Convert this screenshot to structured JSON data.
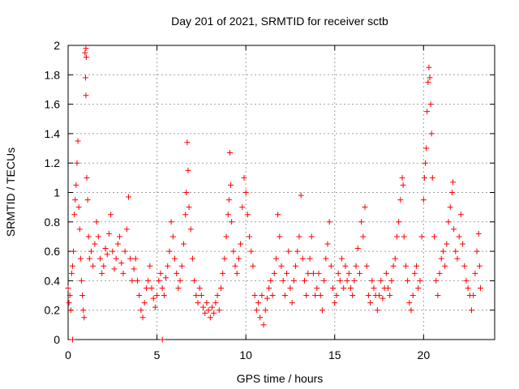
{
  "chart_data": {
    "type": "scatter",
    "title": "Day 201 of 2021, SRMTID for receiver sctb",
    "xlabel": "GPS time / hours",
    "ylabel": "SRMTID / TECUs",
    "xlim": [
      0,
      24
    ],
    "ylim": [
      0,
      2
    ],
    "xticks": [
      0,
      5,
      10,
      15,
      20
    ],
    "xtick_labels": [
      "0",
      "5",
      "10",
      "15",
      "20"
    ],
    "yticks": [
      0,
      0.2,
      0.4,
      0.6,
      0.8,
      1,
      1.2,
      1.4,
      1.6,
      1.8,
      2
    ],
    "ytick_labels": [
      "0",
      "0.2",
      "0.4",
      "0.6",
      "0.8",
      "1",
      "1.2",
      "1.4",
      "1.6",
      "1.8",
      "2"
    ],
    "grid": true,
    "marker": "plus",
    "color": "#ff0000",
    "series": [
      {
        "name": "SRMTID",
        "points": [
          [
            0.0,
            0.35
          ],
          [
            0.05,
            0.25
          ],
          [
            0.1,
            0.3
          ],
          [
            0.15,
            0.2
          ],
          [
            0.2,
            0.45
          ],
          [
            0.25,
            0.5
          ],
          [
            0.3,
            0.6
          ],
          [
            0.35,
            0.85
          ],
          [
            0.4,
            0.95
          ],
          [
            0.45,
            1.05
          ],
          [
            0.5,
            1.2
          ],
          [
            0.55,
            1.35
          ],
          [
            0.6,
            0.9
          ],
          [
            0.65,
            0.75
          ],
          [
            0.7,
            0.55
          ],
          [
            0.75,
            0.4
          ],
          [
            0.8,
            0.3
          ],
          [
            0.85,
            0.2
          ],
          [
            0.9,
            0.15
          ],
          [
            0.95,
            1.95
          ],
          [
            1.0,
            1.98
          ],
          [
            1.02,
            1.92
          ],
          [
            0.98,
            1.78
          ],
          [
            1.0,
            1.66
          ],
          [
            1.05,
            1.1
          ],
          [
            1.1,
            0.95
          ],
          [
            1.15,
            0.7
          ],
          [
            1.2,
            0.55
          ],
          [
            1.3,
            0.6
          ],
          [
            1.4,
            0.5
          ],
          [
            1.5,
            0.65
          ],
          [
            1.6,
            0.8
          ],
          [
            1.7,
            0.7
          ],
          [
            1.8,
            0.55
          ],
          [
            1.9,
            0.45
          ],
          [
            2.0,
            0.5
          ],
          [
            2.1,
            0.62
          ],
          [
            2.2,
            0.58
          ],
          [
            2.3,
            0.72
          ],
          [
            2.4,
            0.85
          ],
          [
            2.5,
            0.6
          ],
          [
            2.6,
            0.48
          ],
          [
            2.7,
            0.55
          ],
          [
            2.8,
            0.65
          ],
          [
            2.9,
            0.7
          ],
          [
            3.0,
            0.52
          ],
          [
            3.1,
            0.45
          ],
          [
            3.2,
            0.6
          ],
          [
            3.3,
            0.75
          ],
          [
            3.4,
            0.97
          ],
          [
            3.5,
            0.55
          ],
          [
            3.6,
            0.4
          ],
          [
            3.7,
            0.48
          ],
          [
            3.8,
            0.55
          ],
          [
            3.9,
            0.4
          ],
          [
            4.0,
            0.3
          ],
          [
            4.1,
            0.2
          ],
          [
            4.2,
            0.15
          ],
          [
            4.3,
            0.25
          ],
          [
            4.4,
            0.35
          ],
          [
            4.5,
            0.4
          ],
          [
            4.6,
            0.5
          ],
          [
            4.7,
            0.35
          ],
          [
            4.8,
            0.28
          ],
          [
            4.9,
            0.22
          ],
          [
            5.0,
            0.3
          ],
          [
            5.1,
            0.4
          ],
          [
            5.2,
            0.45
          ],
          [
            5.3,
            0.35
          ],
          [
            5.4,
            0.3
          ],
          [
            5.5,
            0.42
          ],
          [
            5.6,
            0.5
          ],
          [
            5.7,
            0.6
          ],
          [
            5.8,
            0.8
          ],
          [
            5.9,
            0.7
          ],
          [
            6.0,
            0.55
          ],
          [
            6.1,
            0.45
          ],
          [
            6.2,
            0.35
          ],
          [
            6.3,
            0.4
          ],
          [
            6.4,
            0.5
          ],
          [
            6.5,
            0.65
          ],
          [
            6.6,
            0.85
          ],
          [
            6.65,
            1.0
          ],
          [
            6.7,
            1.34
          ],
          [
            6.75,
            1.15
          ],
          [
            6.8,
            0.9
          ],
          [
            6.9,
            0.75
          ],
          [
            7.0,
            0.55
          ],
          [
            7.1,
            0.4
          ],
          [
            7.2,
            0.3
          ],
          [
            7.3,
            0.25
          ],
          [
            7.4,
            0.35
          ],
          [
            7.5,
            0.3
          ],
          [
            7.6,
            0.22
          ],
          [
            7.7,
            0.18
          ],
          [
            7.8,
            0.25
          ],
          [
            7.9,
            0.2
          ],
          [
            8.0,
            0.15
          ],
          [
            8.1,
            0.22
          ],
          [
            8.2,
            0.18
          ],
          [
            8.3,
            0.25
          ],
          [
            8.4,
            0.3
          ],
          [
            8.5,
            0.2
          ],
          [
            8.6,
            0.35
          ],
          [
            8.7,
            0.45
          ],
          [
            8.8,
            0.55
          ],
          [
            8.9,
            0.7
          ],
          [
            9.0,
            0.85
          ],
          [
            9.05,
            0.95
          ],
          [
            9.1,
            1.27
          ],
          [
            9.15,
            1.05
          ],
          [
            9.2,
            0.8
          ],
          [
            9.3,
            0.6
          ],
          [
            9.4,
            0.5
          ],
          [
            9.5,
            0.45
          ],
          [
            9.6,
            0.55
          ],
          [
            9.7,
            0.65
          ],
          [
            9.8,
            0.9
          ],
          [
            9.9,
            1.1
          ],
          [
            10.0,
            1.0
          ],
          [
            10.1,
            0.85
          ],
          [
            10.2,
            0.7
          ],
          [
            10.3,
            0.6
          ],
          [
            10.4,
            0.5
          ],
          [
            10.5,
            0.3
          ],
          [
            10.6,
            0.2
          ],
          [
            10.7,
            0.25
          ],
          [
            10.8,
            0.15
          ],
          [
            10.9,
            0.3
          ],
          [
            11.0,
            0.1
          ],
          [
            11.1,
            0.2
          ],
          [
            11.2,
            0.28
          ],
          [
            11.3,
            0.35
          ],
          [
            11.4,
            0.4
          ],
          [
            11.5,
            0.3
          ],
          [
            11.6,
            0.45
          ],
          [
            11.7,
            0.55
          ],
          [
            11.8,
            0.85
          ],
          [
            11.9,
            0.7
          ],
          [
            12.0,
            0.5
          ],
          [
            12.1,
            0.4
          ],
          [
            12.2,
            0.3
          ],
          [
            12.3,
            0.45
          ],
          [
            12.4,
            0.6
          ],
          [
            12.5,
            0.35
          ],
          [
            12.6,
            0.25
          ],
          [
            12.7,
            0.4
          ],
          [
            12.8,
            0.5
          ],
          [
            12.9,
            0.6
          ],
          [
            13.0,
            0.7
          ],
          [
            13.1,
            0.98
          ],
          [
            13.2,
            0.55
          ],
          [
            13.3,
            0.4
          ],
          [
            13.4,
            0.3
          ],
          [
            13.5,
            0.45
          ],
          [
            13.6,
            0.55
          ],
          [
            13.7,
            0.7
          ],
          [
            13.8,
            0.45
          ],
          [
            13.9,
            0.3
          ],
          [
            14.0,
            0.35
          ],
          [
            14.1,
            0.45
          ],
          [
            14.2,
            0.3
          ],
          [
            14.3,
            0.2
          ],
          [
            14.4,
            0.4
          ],
          [
            14.5,
            0.55
          ],
          [
            14.6,
            0.65
          ],
          [
            14.7,
            0.8
          ],
          [
            14.8,
            0.5
          ],
          [
            14.9,
            0.35
          ],
          [
            15.0,
            0.25
          ],
          [
            15.1,
            0.3
          ],
          [
            15.2,
            0.45
          ],
          [
            15.3,
            0.4
          ],
          [
            15.4,
            0.55
          ],
          [
            15.5,
            0.35
          ],
          [
            15.6,
            0.5
          ],
          [
            15.7,
            0.4
          ],
          [
            15.8,
            0.45
          ],
          [
            15.9,
            0.35
          ],
          [
            16.0,
            0.3
          ],
          [
            16.1,
            0.4
          ],
          [
            16.2,
            0.5
          ],
          [
            16.3,
            0.62
          ],
          [
            16.4,
            0.45
          ],
          [
            16.5,
            0.8
          ],
          [
            16.6,
            0.7
          ],
          [
            16.7,
            0.9
          ],
          [
            16.8,
            0.5
          ],
          [
            16.9,
            0.3
          ],
          [
            17.0,
            0.25
          ],
          [
            17.1,
            0.4
          ],
          [
            17.2,
            0.35
          ],
          [
            17.3,
            0.3
          ],
          [
            17.4,
            0.2
          ],
          [
            17.5,
            0.3
          ],
          [
            17.6,
            0.4
          ],
          [
            17.7,
            0.28
          ],
          [
            17.8,
            0.35
          ],
          [
            17.9,
            0.45
          ],
          [
            18.0,
            0.35
          ],
          [
            18.1,
            0.3
          ],
          [
            18.2,
            0.4
          ],
          [
            18.3,
            0.5
          ],
          [
            18.4,
            0.55
          ],
          [
            18.5,
            0.7
          ],
          [
            18.6,
            0.8
          ],
          [
            18.7,
            0.95
          ],
          [
            18.8,
            1.1
          ],
          [
            18.85,
            1.05
          ],
          [
            18.9,
            0.7
          ],
          [
            19.0,
            0.5
          ],
          [
            19.1,
            0.4
          ],
          [
            19.2,
            0.25
          ],
          [
            19.3,
            0.2
          ],
          [
            19.4,
            0.3
          ],
          [
            19.5,
            0.45
          ],
          [
            19.6,
            0.5
          ],
          [
            19.7,
            0.35
          ],
          [
            19.8,
            0.4
          ],
          [
            19.9,
            0.7
          ],
          [
            20.0,
            0.95
          ],
          [
            20.05,
            1.1
          ],
          [
            20.1,
            1.2
          ],
          [
            20.15,
            1.3
          ],
          [
            20.2,
            1.55
          ],
          [
            20.25,
            1.75
          ],
          [
            20.3,
            1.85
          ],
          [
            20.35,
            1.78
          ],
          [
            20.4,
            1.6
          ],
          [
            20.45,
            1.4
          ],
          [
            20.5,
            1.1
          ],
          [
            20.6,
            0.7
          ],
          [
            20.7,
            0.4
          ],
          [
            20.8,
            0.3
          ],
          [
            20.9,
            0.45
          ],
          [
            21.0,
            0.55
          ],
          [
            21.1,
            0.6
          ],
          [
            21.2,
            0.5
          ],
          [
            21.3,
            0.65
          ],
          [
            21.4,
            0.8
          ],
          [
            21.5,
            0.9
          ],
          [
            21.6,
            1.0
          ],
          [
            21.65,
            1.07
          ],
          [
            21.7,
            0.75
          ],
          [
            21.8,
            0.6
          ],
          [
            21.9,
            0.55
          ],
          [
            22.0,
            0.7
          ],
          [
            22.1,
            0.85
          ],
          [
            22.2,
            0.65
          ],
          [
            22.3,
            0.5
          ],
          [
            22.4,
            0.4
          ],
          [
            22.5,
            0.35
          ],
          [
            22.6,
            0.3
          ],
          [
            22.7,
            0.2
          ],
          [
            22.8,
            0.3
          ],
          [
            22.9,
            0.45
          ],
          [
            23.0,
            0.6
          ],
          [
            23.1,
            0.72
          ],
          [
            23.15,
            0.5
          ],
          [
            23.2,
            0.35
          ],
          [
            0.25,
            0.0
          ],
          [
            5.3,
            0.0
          ]
        ]
      }
    ]
  }
}
